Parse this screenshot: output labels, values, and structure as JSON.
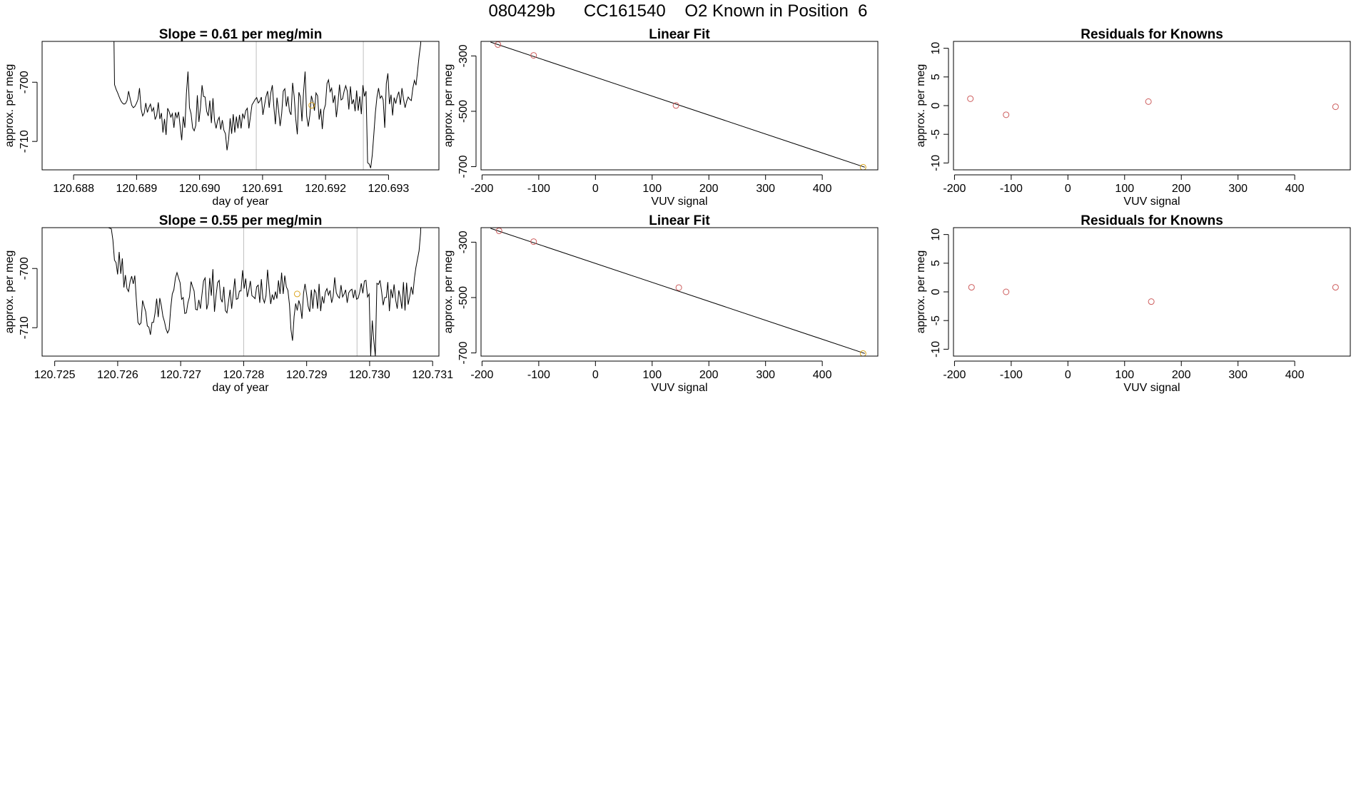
{
  "main_title": "080429b      CC161540    O2 Known in Position  6",
  "colors": {
    "line": "#000000",
    "known_point": "#cd5c5c",
    "highlight_point": "#daa520",
    "vertical_marker": "#bfbfbf"
  },
  "chart_data": [
    {
      "type": "line",
      "title": "Slope =  0.61  per meg/min",
      "xlabel": "day of year",
      "ylabel": "approx. per meg",
      "xlim": [
        120.6875,
        120.6938
      ],
      "ylim": [
        -714.8,
        -693.1
      ],
      "xticks": [
        120.688,
        120.689,
        120.69,
        120.691,
        120.692,
        120.693
      ],
      "xtick_labels": [
        "120.688",
        "120.689",
        "120.690",
        "120.691",
        "120.692",
        "120.693"
      ],
      "yticks": [
        -700,
        -710
      ],
      "ytick_labels": [
        "-700",
        "-710"
      ],
      "vlines": [
        120.6909,
        120.6926
      ],
      "series_start_x": 120.68865,
      "series_step_x": 2.48e-05,
      "y_start": -680,
      "y_end": -680,
      "y_series": [
        -700.4,
        -701.2,
        -701.8,
        -702.5,
        -703.1,
        -703.5,
        -703.7,
        -703.6,
        -703.1,
        -701.5,
        -702.8,
        -703.9,
        -704.3,
        -704.1,
        -703.6,
        -702.9,
        -701.0,
        -704.5,
        -705.7,
        -705.2,
        -703.5,
        -705.1,
        -704.3,
        -703.7,
        -704.9,
        -704.3,
        -706.3,
        -705.6,
        -703.4,
        -706.2,
        -705.2,
        -708.5,
        -706.2,
        -708.9,
        -704.4,
        -705.0,
        -705.9,
        -705.3,
        -707.7,
        -705.1,
        -706.0,
        -705.0,
        -707.4,
        -709.8,
        -705.8,
        -707.7,
        -701.9,
        -698.2,
        -704.3,
        -705.3,
        -707.7,
        -708.2,
        -707.3,
        -702.2,
        -706.7,
        -704.3,
        -700.5,
        -702.4,
        -702.5,
        -704.9,
        -705.7,
        -703.1,
        -706.9,
        -702.7,
        -706.5,
        -707.8,
        -706.5,
        -705.9,
        -708.0,
        -706.4,
        -708.1,
        -708.7,
        -711.5,
        -709.7,
        -706.1,
        -708.7,
        -705.4,
        -708.5,
        -705.8,
        -707.8,
        -705.5,
        -707.8,
        -705.3,
        -706.1,
        -704.8,
        -704.4,
        -707.8,
        -705.8,
        -703.8,
        -703.4,
        -702.9,
        -702.6,
        -703.5,
        -703.2,
        -702.5,
        -705.5,
        -703.9,
        -702.4,
        -701.5,
        -704.3,
        -701.8,
        -700.5,
        -704.1,
        -707.1,
        -702.6,
        -704.7,
        -707.4,
        -705.3,
        -701.5,
        -701.1,
        -704.1,
        -702.4,
        -704.9,
        -705.5,
        -700.1,
        -702.4,
        -706.2,
        -708.8,
        -701.7,
        -702.5,
        -706.6,
        -701.7,
        -698.2,
        -705.7,
        -707.5,
        -705.6,
        -702.3,
        -703.3,
        -704.8,
        -701.8,
        -702.3,
        -706.3,
        -704.5,
        -707.9,
        -704.7,
        -703.8,
        -700.2,
        -699.6,
        -701.6,
        -701.0,
        -703.5,
        -702.2,
        -705.9,
        -703.6,
        -700.4,
        -703.0,
        -702.8,
        -701.5,
        -700.6,
        -701.5,
        -704.6,
        -700.7,
        -703.7,
        -702.9,
        -704.9,
        -701.4,
        -704.8,
        -702.4,
        -705.4,
        -700.5,
        -702.4,
        -701.5,
        -713.6,
        -713.8,
        -714.5,
        -712.3,
        -708.8,
        -705.1,
        -702.5,
        -701.0,
        -702.7,
        -702.3,
        -703.0,
        -707.7,
        -700.2,
        -698.5,
        -703.7,
        -702.1,
        -705.6,
        -702.6,
        -703.6,
        -702.4,
        -701.6,
        -703.8,
        -701.0,
        -702.8,
        -704.3,
        -703.2,
        -702.5,
        -702.9,
        -703.1,
        -701.0,
        -699.7,
        -700.5,
        -698.1,
        -695.5,
        -693.5
      ],
      "highlight_point": {
        "x": 120.69178,
        "y": -703.9
      }
    },
    {
      "type": "scatter",
      "title": "Linear Fit",
      "xlabel": "VUV signal",
      "ylabel": "approx. per meg",
      "xlim": [
        -201.8,
        498.0
      ],
      "ylim": [
        -711.5,
        -247.5
      ],
      "xticks": [
        -200,
        -100,
        0,
        100,
        200,
        300,
        400
      ],
      "xtick_labels": [
        "-200",
        "-100",
        "0",
        "100",
        "200",
        "300",
        "400"
      ],
      "yticks": [
        -300,
        -500,
        -700
      ],
      "ytick_labels": [
        "-300",
        "-500",
        "-700"
      ],
      "x": [
        -172,
        -109,
        142,
        472
      ],
      "y": [
        -259,
        -298,
        -479,
        -702
      ],
      "highlight_index": 3,
      "fit_line": {
        "x": [
          -185,
          475
        ],
        "y": [
          -250,
          -702
        ]
      }
    },
    {
      "type": "scatter",
      "title": "Residuals for Knowns",
      "xlabel": "VUV signal",
      "ylabel": "approx. per meg",
      "xlim": [
        -201.8,
        498.0
      ],
      "ylim": [
        -11.2,
        11.2
      ],
      "xticks": [
        -200,
        -100,
        0,
        100,
        200,
        300,
        400
      ],
      "xtick_labels": [
        "-200",
        "-100",
        "0",
        "100",
        "200",
        "300",
        "400"
      ],
      "yticks": [
        -10,
        -5,
        0,
        5,
        10
      ],
      "ytick_labels": [
        "-10",
        "-5",
        "0",
        "5",
        "10"
      ],
      "x": [
        -172,
        -109,
        142,
        472
      ],
      "y": [
        1.2,
        -1.6,
        0.7,
        -0.2
      ]
    },
    {
      "type": "line",
      "title": "Slope =  0.55  per meg/min",
      "xlabel": "day of year",
      "ylabel": "approx. per meg",
      "xlim": [
        120.7248,
        120.7311
      ],
      "ylim": [
        -714.8,
        -693.1
      ],
      "xticks": [
        120.725,
        120.726,
        120.727,
        120.728,
        120.729,
        120.73,
        120.731
      ],
      "xtick_labels": [
        "120.725",
        "120.726",
        "120.727",
        "120.728",
        "120.729",
        "120.730",
        "120.731"
      ],
      "yticks": [
        -700,
        -710
      ],
      "ytick_labels": [
        "-700",
        "-710"
      ],
      "vlines": [
        120.728,
        120.7298
      ],
      "series_start_x": 120.72585,
      "series_step_x": 2.48e-05,
      "y_start": -680,
      "y_end": -680,
      "y_series": [
        -693.1,
        -693.2,
        -693.3,
        -695.2,
        -698.6,
        -699.0,
        -701.0,
        -697.2,
        -700.9,
        -698.3,
        -703.2,
        -701.1,
        -703.4,
        -703.9,
        -702.2,
        -701.3,
        -702.6,
        -701.2,
        -705.4,
        -709.1,
        -709.5,
        -709.2,
        -705.4,
        -706.4,
        -707.3,
        -709.7,
        -709.9,
        -711.2,
        -709.1,
        -709.1,
        -707.5,
        -705.1,
        -708.2,
        -705.0,
        -706.3,
        -708.1,
        -709.0,
        -710.2,
        -710.9,
        -710.3,
        -706.7,
        -704.3,
        -703.6,
        -701.6,
        -700.7,
        -701.6,
        -702.4,
        -705.2,
        -704.9,
        -707.6,
        -707.5,
        -705.8,
        -704.8,
        -702.2,
        -703.1,
        -703.8,
        -706.9,
        -707.0,
        -705.3,
        -706.8,
        -704.4,
        -702.1,
        -701.6,
        -706.9,
        -705.9,
        -701.6,
        -704.6,
        -700.1,
        -707.3,
        -704.6,
        -702.4,
        -702.0,
        -705.1,
        -705.7,
        -703.1,
        -707.1,
        -707.5,
        -705.6,
        -703.6,
        -706.8,
        -704.3,
        -701.7,
        -705.2,
        -705.1,
        -703.8,
        -703.8,
        -700.3,
        -703.4,
        -701.7,
        -704.8,
        -703.7,
        -702.1,
        -704.6,
        -704.8,
        -705.1,
        -703.1,
        -702.8,
        -705.8,
        -701.8,
        -705.0,
        -705.8,
        -704.6,
        -700.2,
        -703.3,
        -706.0,
        -704.4,
        -705.3,
        -703.9,
        -705.1,
        -702.0,
        -704.3,
        -700.7,
        -704.3,
        -701.2,
        -703.1,
        -703.7,
        -706.1,
        -710.3,
        -712.2,
        -708.1,
        -705.9,
        -707.1,
        -705.4,
        -706.3,
        -708.5,
        -704.2,
        -702.6,
        -704.3,
        -706.4,
        -707.3,
        -703.6,
        -706.8,
        -703.6,
        -704.1,
        -706.8,
        -702.6,
        -707.2,
        -704.7,
        -705.9,
        -704.0,
        -703.4,
        -704.5,
        -703.7,
        -705.8,
        -704.7,
        -701.5,
        -704.1,
        -704.7,
        -705.0,
        -702.8,
        -704.8,
        -704.3,
        -703.6,
        -705.8,
        -704.1,
        -703.7,
        -703.5,
        -705.0,
        -703.6,
        -705.2,
        -705.0,
        -704.0,
        -702.5,
        -704.2,
        -702.1,
        -702.0,
        -704.8,
        -704.3,
        -714.8,
        -708.8,
        -712.1,
        -714.8,
        -702.5,
        -702.7,
        -702.0,
        -703.9,
        -706.2,
        -704.9,
        -704.9,
        -702.3,
        -707.2,
        -703.5,
        -705.0,
        -702.7,
        -705.3,
        -706.8,
        -703.7,
        -704.9,
        -706.8,
        -702.3,
        -707.1,
        -702.4,
        -706.1,
        -704.7,
        -703.1,
        -704.4,
        -701.6,
        -699.8,
        -698.4,
        -697.0,
        -693.9
      ],
      "highlight_point": {
        "x": 120.72885,
        "y": -704.3
      }
    },
    {
      "type": "scatter",
      "title": "Linear Fit",
      "xlabel": "VUV signal",
      "ylabel": "approx. per meg",
      "xlim": [
        -201.8,
        498.0
      ],
      "ylim": [
        -711.5,
        -247.5
      ],
      "xticks": [
        -200,
        -100,
        0,
        100,
        200,
        300,
        400
      ],
      "xtick_labels": [
        "-200",
        "-100",
        "0",
        "100",
        "200",
        "300",
        "400"
      ],
      "yticks": [
        -300,
        -500,
        -700
      ],
      "ytick_labels": [
        "-300",
        "-500",
        "-700"
      ],
      "x": [
        -170,
        -109,
        147,
        472
      ],
      "y": [
        -259,
        -298,
        -464,
        -702
      ],
      "highlight_index": 3,
      "fit_line": {
        "x": [
          -185,
          475
        ],
        "y": [
          -250,
          -702
        ]
      }
    },
    {
      "type": "scatter",
      "title": "Residuals for Knowns",
      "xlabel": "VUV signal",
      "ylabel": "approx. per meg",
      "xlim": [
        -201.8,
        498.0
      ],
      "ylim": [
        -11.2,
        11.2
      ],
      "xticks": [
        -200,
        -100,
        0,
        100,
        200,
        300,
        400
      ],
      "xtick_labels": [
        "-200",
        "-100",
        "0",
        "100",
        "200",
        "300",
        "400"
      ],
      "yticks": [
        -10,
        -5,
        0,
        5,
        10
      ],
      "ytick_labels": [
        "-10",
        "-5",
        "0",
        "5",
        "10"
      ],
      "x": [
        -170,
        -109,
        147,
        472
      ],
      "y": [
        0.8,
        0.0,
        -1.7,
        0.8
      ]
    }
  ]
}
